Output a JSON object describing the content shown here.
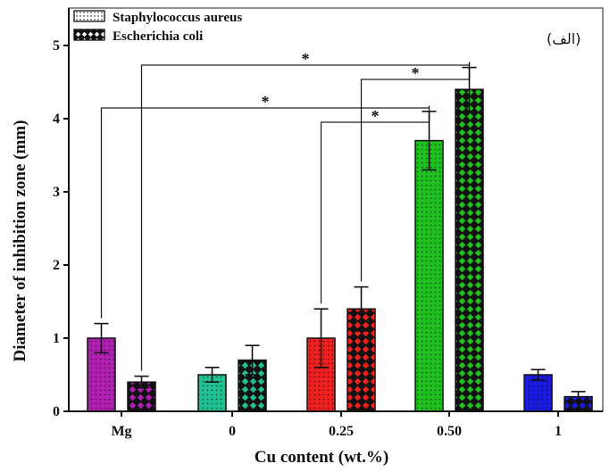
{
  "panel_label": "(الف)",
  "chart_data": {
    "type": "bar",
    "xlabel": "Cu content (wt.%)",
    "ylabel": "Diameter of inhibition zone (mm)",
    "ylim": [
      0,
      5
    ],
    "yticks": [
      "0",
      "1",
      "2",
      "3",
      "4",
      "5"
    ],
    "categories": [
      "Mg",
      "0",
      "0.25",
      "0.50",
      "1"
    ],
    "series": [
      {
        "name": "Staphylococcus aureus",
        "pattern": "dotted",
        "values": [
          1.0,
          0.5,
          1.0,
          3.7,
          0.5
        ],
        "errors": [
          0.2,
          0.1,
          0.4,
          0.4,
          0.07
        ]
      },
      {
        "name": "Escherichia coli",
        "pattern": "crosshatch",
        "values": [
          0.4,
          0.7,
          1.4,
          4.4,
          0.2
        ],
        "errors": [
          0.08,
          0.2,
          0.3,
          0.3,
          0.07
        ]
      }
    ],
    "category_colors": [
      "#b020b0",
      "#20c090",
      "#ee2020",
      "#20c020",
      "#1a1ae0"
    ],
    "significance": [
      {
        "label": "*",
        "from_category": 0,
        "from_series": 1,
        "to_category": 3,
        "to_series": 1
      },
      {
        "label": "*",
        "from_category": 2,
        "from_series": 1,
        "to_category": 3,
        "to_series": 1
      },
      {
        "label": "*",
        "from_category": 0,
        "from_series": 0,
        "to_category": 3,
        "to_series": 0
      },
      {
        "label": "*",
        "from_category": 2,
        "from_series": 0,
        "to_category": 3,
        "to_series": 0
      }
    ],
    "legend_position": "top-left",
    "grid": false
  }
}
